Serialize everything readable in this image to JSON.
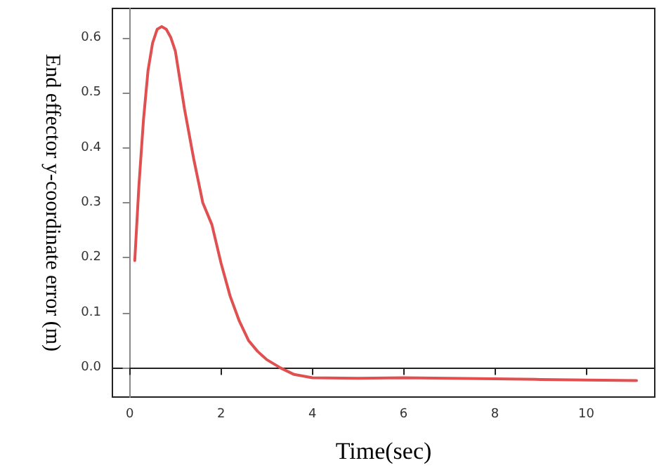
{
  "chart_data": {
    "type": "line",
    "xlabel": "Time(sec)",
    "ylabel": "End effector y-coordinate error (m)",
    "xlim": [
      -0.38,
      11.5
    ],
    "xticks": [
      0,
      2,
      4,
      6,
      8,
      10
    ],
    "ylim": [
      -0.053,
      0.653
    ],
    "yticks": [
      {
        "value": 0,
        "label": "0.0"
      },
      {
        "value": 0.1,
        "label": "0.1"
      },
      {
        "value": 0.2,
        "label": "0.2"
      },
      {
        "value": 0.3,
        "label": "0.3"
      },
      {
        "value": 0.4,
        "label": "0.4"
      },
      {
        "value": 0.5,
        "label": "0.5"
      },
      {
        "value": 0.6,
        "label": "0.6"
      }
    ],
    "grid": false,
    "marker": "none",
    "line_style": "solid",
    "series": [
      {
        "color": "#e05050",
        "x": [
          0.11,
          0.2,
          0.3,
          0.4,
          0.5,
          0.6,
          0.7,
          0.8,
          0.9,
          1.0,
          1.2,
          1.4,
          1.6,
          1.8,
          2.0,
          2.2,
          2.4,
          2.6,
          2.8,
          3.0,
          3.3,
          3.6,
          4.0,
          5.0,
          6.0,
          7.0,
          8.0,
          9.0,
          10.0,
          11.1
        ],
        "values": [
          0.195,
          0.33,
          0.45,
          0.54,
          0.59,
          0.615,
          0.62,
          0.615,
          0.6,
          0.575,
          0.47,
          0.38,
          0.3,
          0.26,
          0.19,
          0.13,
          0.085,
          0.05,
          0.03,
          0.015,
          0.0,
          -0.012,
          -0.018,
          -0.019,
          -0.018,
          -0.019,
          -0.02,
          -0.021,
          -0.022,
          -0.023
        ]
      }
    ]
  }
}
